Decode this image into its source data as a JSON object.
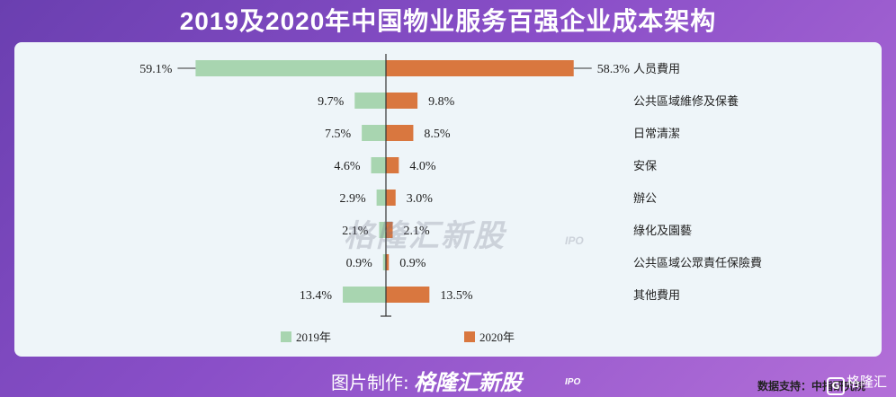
{
  "header": {
    "title": "2019及2020年中国物业服务百强企业成本架构"
  },
  "footer": {
    "label": "图片制作:",
    "brand": "格隆汇新股",
    "brand_sub": "IPO",
    "corner_logo": "格隆汇",
    "corner_logo_mark": "G"
  },
  "watermark": {
    "text": "格隆汇新股",
    "sub": "IPO"
  },
  "source": "数据支持：中指研究院",
  "colors": {
    "series_2019": "#a8d5b0",
    "series_2020": "#d9773f",
    "axis": "#333333"
  },
  "chart_data": {
    "type": "bar",
    "orientation": "horizontal-butterfly",
    "categories": [
      "人员費用",
      "公共區域維修及保養",
      "日常清潔",
      "安保",
      "辦公",
      "綠化及園藝",
      "公共區域公眾責任保險費",
      "其他費用"
    ],
    "series": [
      {
        "name": "2019年",
        "values": [
          59.1,
          9.7,
          7.5,
          4.6,
          2.9,
          2.1,
          0.9,
          13.4
        ],
        "labels": [
          "59.1%",
          "9.7%",
          "7.5%",
          "4.6%",
          "2.9%",
          "2.1%",
          "0.9%",
          "13.4%"
        ]
      },
      {
        "name": "2020年",
        "values": [
          58.3,
          9.8,
          8.5,
          4.0,
          3.0,
          2.1,
          0.9,
          13.5
        ],
        "labels": [
          "58.3%",
          "9.8%",
          "8.5%",
          "4.0%",
          "3.0%",
          "2.1%",
          "0.9%",
          "13.5%"
        ]
      }
    ],
    "unit": "%",
    "legend_position": "bottom"
  }
}
